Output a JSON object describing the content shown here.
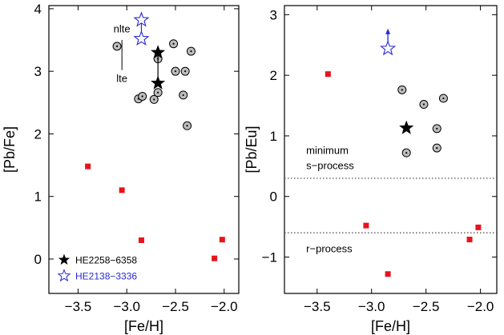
{
  "chart_data": [
    {
      "type": "scatter",
      "xlabel": "[Fe/H]",
      "ylabel": "[Pb/Fe]",
      "xlim": [
        -3.8,
        -1.85
      ],
      "ylim": [
        -0.55,
        4.05
      ],
      "xticks": [
        -3.5,
        -3.0,
        -2.5,
        -2.0
      ],
      "xtick_labels": [
        "−3.5",
        "−3.0",
        "−2.5",
        "−2.0"
      ],
      "yticks": [
        0,
        1,
        2,
        3,
        4
      ],
      "ytick_labels": [
        "0",
        "1",
        "2",
        "3",
        "4"
      ],
      "colors": {
        "red_squares": "#e8141b",
        "circles": "#bdbdbd",
        "blue_star": "#2a2ad4",
        "black_star": "#000000"
      },
      "series": [
        {
          "marker": "square",
          "x": [
            -3.4,
            -3.05,
            -2.85,
            -2.1,
            -2.02
          ],
          "y": [
            1.48,
            1.1,
            0.3,
            0.01,
            0.31
          ]
        },
        {
          "marker": "circle-dot",
          "x": [
            -3.1,
            -2.88,
            -2.84,
            -2.72,
            -2.68,
            -2.68,
            -2.52,
            -2.5,
            -2.42,
            -2.4,
            -2.38,
            -2.34
          ],
          "y": [
            3.4,
            2.56,
            2.6,
            2.55,
            3.2,
            2.66,
            3.44,
            3.0,
            2.62,
            3.0,
            2.13,
            3.32
          ]
        },
        {
          "marker": "filled-star",
          "label": "HE2258−6358",
          "x": [
            -2.68,
            -2.68
          ],
          "y": [
            3.3,
            2.81
          ],
          "connected": true
        },
        {
          "marker": "open-star",
          "label": "HE2138−3336",
          "x": [
            -2.85,
            -2.85
          ],
          "y": [
            3.82,
            3.52
          ],
          "connected": true
        }
      ],
      "annotations": [
        {
          "text": "nlte",
          "data_x": -3.05,
          "data_y": 3.62
        },
        {
          "text": "lte",
          "data_x": -3.05,
          "data_y": 2.83
        }
      ],
      "legend": {
        "placement": "bottom-left",
        "entries": [
          {
            "label": "HE2258−6358",
            "marker": "filled-star",
            "color": "#000000"
          },
          {
            "label": "HE2138−3336",
            "marker": "open-star",
            "color": "#2a2ad4"
          }
        ]
      }
    },
    {
      "type": "scatter",
      "xlabel": "[Fe/H]",
      "ylabel": "[Pb/Eu]",
      "xlim": [
        -3.8,
        -1.85
      ],
      "ylim": [
        -1.6,
        3.15
      ],
      "xticks": [
        -3.5,
        -3.0,
        -2.5,
        -2.0
      ],
      "xtick_labels": [
        "−3.5",
        "−3.0",
        "−2.5",
        "−2.0"
      ],
      "yticks": [
        -1,
        0,
        1,
        2,
        3
      ],
      "ytick_labels": [
        "−1",
        "0",
        "1",
        "2",
        "3"
      ],
      "series": [
        {
          "marker": "square",
          "x": [
            -3.4,
            -3.05,
            -2.85,
            -2.1,
            -2.02
          ],
          "y": [
            2.02,
            -0.48,
            -1.28,
            -0.71,
            -0.51
          ]
        },
        {
          "marker": "circle-dot",
          "x": [
            -2.72,
            -2.68,
            -2.52,
            -2.4,
            -2.4,
            -2.34
          ],
          "y": [
            1.76,
            0.72,
            1.52,
            1.12,
            0.8,
            1.62
          ]
        },
        {
          "marker": "filled-star",
          "x": [
            -2.68
          ],
          "y": [
            1.13
          ]
        },
        {
          "marker": "open-star",
          "x": [
            -2.85
          ],
          "y": [
            2.44
          ],
          "arrow": "up"
        }
      ],
      "hlines": [
        {
          "y": 0.3,
          "style": "dotted"
        },
        {
          "y": -0.6,
          "style": "dotted"
        }
      ],
      "annotations": [
        {
          "text": "minimum",
          "data_x": -3.6,
          "data_y": 0.7
        },
        {
          "text": "s−process",
          "data_x": -3.6,
          "data_y": 0.45
        },
        {
          "text": "r−process",
          "data_x": -3.6,
          "data_y": -0.92
        }
      ]
    }
  ]
}
